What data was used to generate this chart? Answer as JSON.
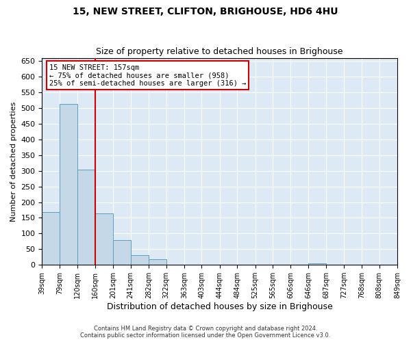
{
  "title": "15, NEW STREET, CLIFTON, BRIGHOUSE, HD6 4HU",
  "subtitle": "Size of property relative to detached houses in Brighouse",
  "xlabel": "Distribution of detached houses by size in Brighouse",
  "ylabel": "Number of detached properties",
  "bins": [
    39,
    79,
    120,
    160,
    201,
    241,
    282,
    322,
    363,
    403,
    444,
    484,
    525,
    565,
    606,
    646,
    687,
    727,
    768,
    808,
    849
  ],
  "bar_heights": [
    168,
    512,
    303,
    165,
    78,
    30,
    17,
    0,
    0,
    0,
    0,
    0,
    0,
    0,
    0,
    5,
    0,
    0,
    0,
    0
  ],
  "bar_color": "#c5d8e8",
  "bar_edge_color": "#5a9fc0",
  "bg_color": "#ddeaf5",
  "grid_color": "#ffffff",
  "vline_x": 160,
  "vline_color": "#cc0000",
  "annotation_text": "15 NEW STREET: 157sqm\n← 75% of detached houses are smaller (958)\n25% of semi-detached houses are larger (316) →",
  "annotation_box_color": "#cc0000",
  "ylim": [
    0,
    660
  ],
  "yticks": [
    0,
    50,
    100,
    150,
    200,
    250,
    300,
    350,
    400,
    450,
    500,
    550,
    600,
    650
  ],
  "footer_line1": "Contains HM Land Registry data © Crown copyright and database right 2024.",
  "footer_line2": "Contains public sector information licensed under the Open Government Licence v3.0."
}
